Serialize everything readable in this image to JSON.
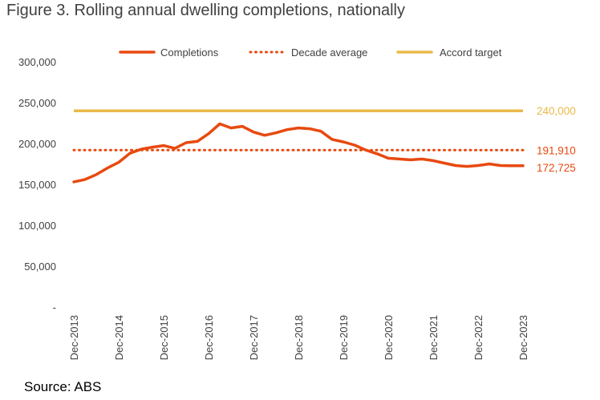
{
  "title": "Figure 3. Rolling annual dwelling completions, nationally",
  "source": "Source: ABS",
  "colors": {
    "completions": "#e8490f",
    "average": "#e8490f",
    "target": "#e9b949",
    "axis_text": "#404040"
  },
  "chart_data": {
    "type": "line",
    "title": "Figure 3. Rolling annual dwelling completions, nationally",
    "xlabel": "",
    "ylabel": "",
    "ylim": [
      0,
      300000
    ],
    "y_ticks": [
      "-",
      "50,000",
      "100,000",
      "150,000",
      "200,000",
      "250,000",
      "300,000"
    ],
    "y_tick_values": [
      0,
      50000,
      100000,
      150000,
      200000,
      250000,
      300000
    ],
    "x_tick_labels": [
      "Dec-2013",
      "Dec-2014",
      "Dec-2015",
      "Dec-2016",
      "Dec-2017",
      "Dec-2018",
      "Dec-2019",
      "Dec-2020",
      "Dec-2021",
      "Dec-2022",
      "Dec-2023"
    ],
    "x": [
      "Dec-2013",
      "Mar-2014",
      "Jun-2014",
      "Sep-2014",
      "Dec-2014",
      "Mar-2015",
      "Jun-2015",
      "Sep-2015",
      "Dec-2015",
      "Mar-2016",
      "Jun-2016",
      "Sep-2016",
      "Dec-2016",
      "Mar-2017",
      "Jun-2017",
      "Sep-2017",
      "Dec-2017",
      "Mar-2018",
      "Jun-2018",
      "Sep-2018",
      "Dec-2018",
      "Mar-2019",
      "Jun-2019",
      "Sep-2019",
      "Dec-2019",
      "Mar-2020",
      "Jun-2020",
      "Sep-2020",
      "Dec-2020",
      "Mar-2021",
      "Jun-2021",
      "Sep-2021",
      "Dec-2021",
      "Mar-2022",
      "Jun-2022",
      "Sep-2022",
      "Dec-2022",
      "Mar-2023",
      "Jun-2023",
      "Sep-2023",
      "Dec-2023"
    ],
    "legend_position": "top",
    "grid": false,
    "series": [
      {
        "name": "Completions",
        "style": "solid",
        "values": [
          153000,
          156000,
          162000,
          170000,
          177000,
          188000,
          193000,
          195500,
          197500,
          194000,
          201000,
          202500,
          212000,
          224000,
          219000,
          221000,
          214000,
          210000,
          213000,
          217000,
          219000,
          218000,
          215000,
          205000,
          202000,
          198000,
          192000,
          187500,
          182000,
          181000,
          180000,
          181000,
          179000,
          176000,
          173000,
          172000,
          173000,
          175000,
          173000,
          172725,
          172725
        ]
      },
      {
        "name": "Decade average",
        "style": "dotted",
        "values": 191910
      },
      {
        "name": "Accord target",
        "style": "solid",
        "values": 240000
      }
    ],
    "end_labels": [
      {
        "series": "Accord target",
        "text": "240,000"
      },
      {
        "series": "Decade average",
        "text": "191,910"
      },
      {
        "series": "Completions",
        "text": "172,725"
      }
    ]
  }
}
